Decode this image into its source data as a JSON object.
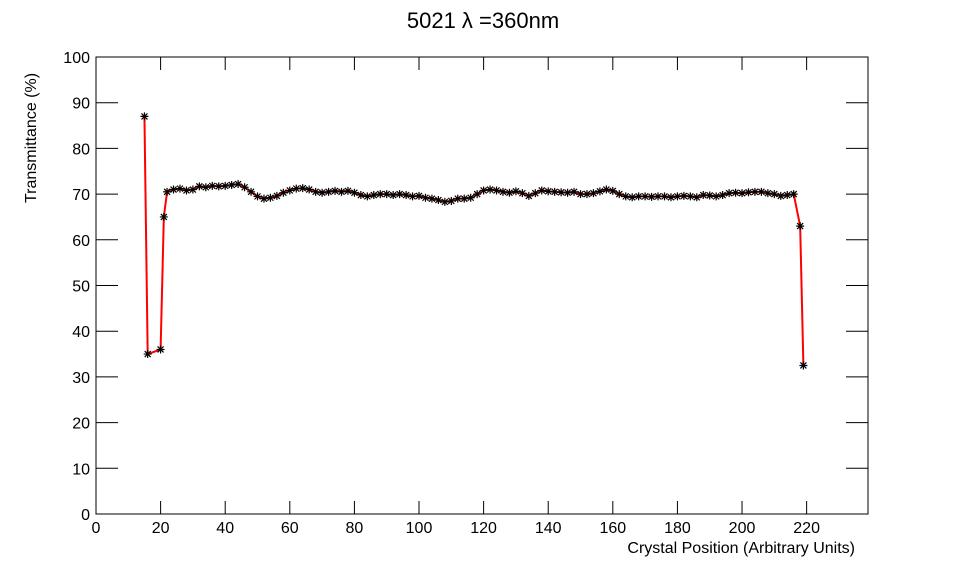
{
  "chart_data": {
    "type": "line",
    "title": "5021 λ =360nm",
    "x_label": "Crystal Position (Arbitrary Units)",
    "y_label": "Transmittance (%)",
    "x": [
      15,
      16,
      20,
      21,
      22,
      24,
      26,
      28,
      30,
      32,
      34,
      36,
      38,
      40,
      42,
      44,
      46,
      48,
      50,
      52,
      54,
      56,
      58,
      60,
      62,
      64,
      66,
      68,
      70,
      72,
      74,
      76,
      78,
      80,
      82,
      84,
      86,
      88,
      90,
      92,
      94,
      96,
      98,
      100,
      102,
      104,
      106,
      108,
      110,
      112,
      114,
      116,
      118,
      120,
      122,
      124,
      126,
      128,
      130,
      132,
      134,
      136,
      138,
      140,
      142,
      144,
      146,
      148,
      150,
      152,
      154,
      156,
      158,
      160,
      162,
      164,
      166,
      168,
      170,
      172,
      174,
      176,
      178,
      180,
      182,
      184,
      186,
      188,
      190,
      192,
      194,
      196,
      198,
      200,
      202,
      204,
      206,
      208,
      210,
      212,
      214,
      216,
      218,
      219
    ],
    "values": [
      87,
      35,
      36,
      65,
      70.5,
      71,
      71.2,
      70.8,
      71,
      71.7,
      71.5,
      71.8,
      71.7,
      71.8,
      72,
      72.2,
      71.5,
      70.5,
      69.5,
      69,
      69.2,
      69.6,
      70.3,
      70.8,
      71.2,
      71.3,
      71,
      70.5,
      70.3,
      70.5,
      70.7,
      70.5,
      70.7,
      70.3,
      69.8,
      69.5,
      69.8,
      70,
      70,
      69.8,
      70,
      69.8,
      69.5,
      69.6,
      69.2,
      69,
      68.7,
      68.3,
      68.5,
      69,
      69,
      69.2,
      70,
      70.8,
      71,
      70.8,
      70.5,
      70.3,
      70.6,
      70.2,
      69.6,
      70.2,
      70.8,
      70.6,
      70.5,
      70.4,
      70.3,
      70.5,
      70,
      70,
      70.2,
      70.6,
      71,
      70.7,
      70,
      69.5,
      69.3,
      69.5,
      69.5,
      69.4,
      69.5,
      69.5,
      69.3,
      69.5,
      69.6,
      69.5,
      69.3,
      69.8,
      69.7,
      69.5,
      69.8,
      70.2,
      70.3,
      70.2,
      70.4,
      70.5,
      70.5,
      70.2,
      70,
      69.6,
      69.8,
      70,
      63,
      32.5
    ],
    "line_color": "#ff0000",
    "marker_color": "#000000",
    "xlim": [
      0,
      239
    ],
    "xticks": [
      0,
      20,
      40,
      60,
      80,
      100,
      120,
      140,
      160,
      180,
      200,
      220
    ],
    "ylim": [
      0,
      100
    ],
    "yticks": [
      0,
      10,
      20,
      30,
      40,
      50,
      60,
      70,
      80,
      90,
      100
    ]
  }
}
